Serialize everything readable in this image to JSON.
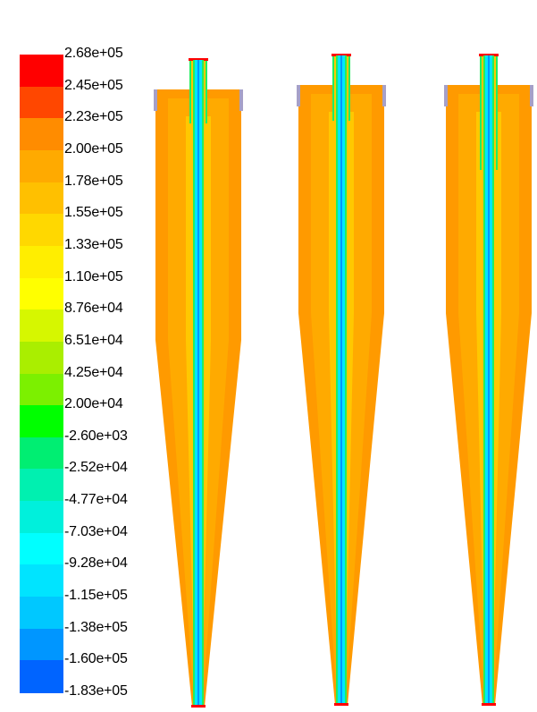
{
  "legend": {
    "labels": [
      "2.68e+05",
      "2.45e+05",
      "2.23e+05",
      "2.00e+05",
      "1.78e+05",
      "1.55e+05",
      "1.33e+05",
      "1.10e+05",
      "8.76e+04",
      "6.51e+04",
      "4.25e+04",
      "2.00e+04",
      "-2.60e+03",
      "-2.52e+04",
      "-4.77e+04",
      "-7.03e+04",
      "-9.28e+04",
      "-1.15e+05",
      "-1.38e+05",
      "-1.60e+05",
      "-1.83e+05"
    ],
    "colors": [
      "#ff0000",
      "#ff4700",
      "#ff8c00",
      "#ffaa00",
      "#ffc000",
      "#ffd800",
      "#ffee00",
      "#ffff00",
      "#d6f700",
      "#aaee00",
      "#7cf000",
      "#00ff00",
      "#00ee72",
      "#00f0b0",
      "#00f0dc",
      "#00ffff",
      "#00e4ff",
      "#00c8ff",
      "#0096ff",
      "#0064ff",
      "#0000ff"
    ]
  },
  "contour_colors": {
    "body": "#ffaa00",
    "body_outer": "#ff9a00",
    "body_inner": "#ffc800",
    "core_cyan": "#00e6ff",
    "core_green": "#20ee60",
    "core_blue": "#0096ff",
    "wall_purple": "#a6a0c8",
    "tip_red": "#ff0000"
  }
}
